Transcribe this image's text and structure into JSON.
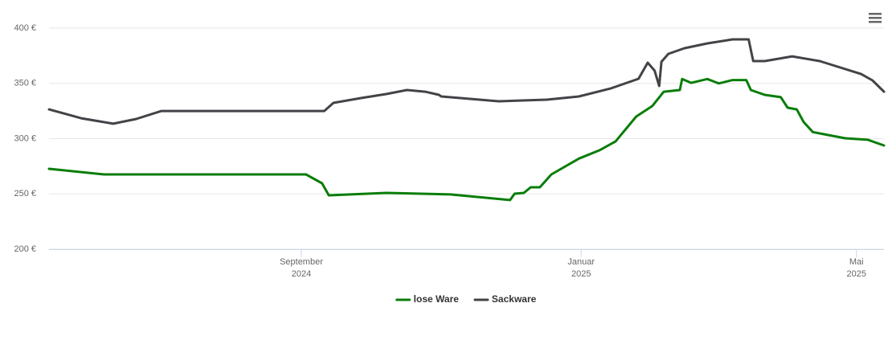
{
  "chart_data": {
    "type": "line",
    "xlim": [
      "2024-05-14",
      "2025-05-13"
    ],
    "xticks": [
      {
        "value": "2024-09-01",
        "label": "September 2024"
      },
      {
        "value": "2025-01-01",
        "label": "Januar 2025"
      },
      {
        "value": "2025-05-01",
        "label": "Mai 2025"
      }
    ],
    "ylim": [
      200,
      400
    ],
    "yticks": [
      {
        "value": 200,
        "label": "200 €"
      },
      {
        "value": 250,
        "label": "250 €"
      },
      {
        "value": 300,
        "label": "300 €"
      },
      {
        "value": 350,
        "label": "350 €"
      },
      {
        "value": 400,
        "label": "400 €"
      }
    ],
    "grid": true,
    "legend": "bottom",
    "series": [
      {
        "name": "lose Ware",
        "color": "#0a7d0a",
        "x": [
          "2024-05-14",
          "2024-06-07",
          "2024-09-03",
          "2024-09-10",
          "2024-09-13",
          "2024-10-08",
          "2024-11-05",
          "2024-12-01",
          "2024-12-03",
          "2024-12-07",
          "2024-12-10",
          "2024-12-14",
          "2024-12-19",
          "2024-12-31",
          "2025-01-09",
          "2025-01-16",
          "2025-01-25",
          "2025-02-01",
          "2025-02-06",
          "2025-02-13",
          "2025-02-14",
          "2025-02-18",
          "2025-02-25",
          "2025-03-02",
          "2025-03-08",
          "2025-03-14",
          "2025-03-16",
          "2025-03-22",
          "2025-03-29",
          "2025-04-01",
          "2025-04-05",
          "2025-04-08",
          "2025-04-12",
          "2025-04-26",
          "2025-05-06",
          "2025-05-13"
        ],
        "values": [
          272.7,
          267.6,
          267.6,
          259.6,
          248.7,
          250.9,
          249.5,
          244.4,
          250.2,
          250.9,
          256,
          256,
          267.6,
          282,
          289.5,
          297.5,
          320,
          329.5,
          342.5,
          344,
          354,
          350.5,
          354,
          350,
          353,
          353,
          344,
          339.6,
          337.5,
          328,
          326.5,
          315,
          306,
          300.4,
          299,
          293.8
        ]
      },
      {
        "name": "Sackware",
        "color": "#434348",
        "x": [
          "2024-05-14",
          "2024-05-28",
          "2024-06-11",
          "2024-06-21",
          "2024-07-02",
          "2024-07-19",
          "2024-09-11",
          "2024-09-15",
          "2024-09-27",
          "2024-10-08",
          "2024-10-17",
          "2024-10-25",
          "2024-10-31",
          "2024-11-01",
          "2024-11-26",
          "2024-12-17",
          "2024-12-31",
          "2025-01-14",
          "2025-01-26",
          "2025-01-30",
          "2025-02-02",
          "2025-02-04",
          "2025-02-05",
          "2025-02-08",
          "2025-02-15",
          "2025-02-25",
          "2025-03-08",
          "2025-03-15",
          "2025-03-17",
          "2025-03-22",
          "2025-04-03",
          "2025-04-15",
          "2025-05-03",
          "2025-05-08",
          "2025-05-13"
        ],
        "values": [
          326.5,
          318.5,
          313.5,
          317.8,
          325,
          325,
          325,
          332.4,
          336.7,
          340.4,
          344,
          342.5,
          339.6,
          338.2,
          333.8,
          335.3,
          338.2,
          345.5,
          354.2,
          368.7,
          361.5,
          347.6,
          369.5,
          376.7,
          381.8,
          386.2,
          389.8,
          389.8,
          370.2,
          370.2,
          374.5,
          370.2,
          358.5,
          352.7,
          342.5
        ]
      }
    ]
  }
}
